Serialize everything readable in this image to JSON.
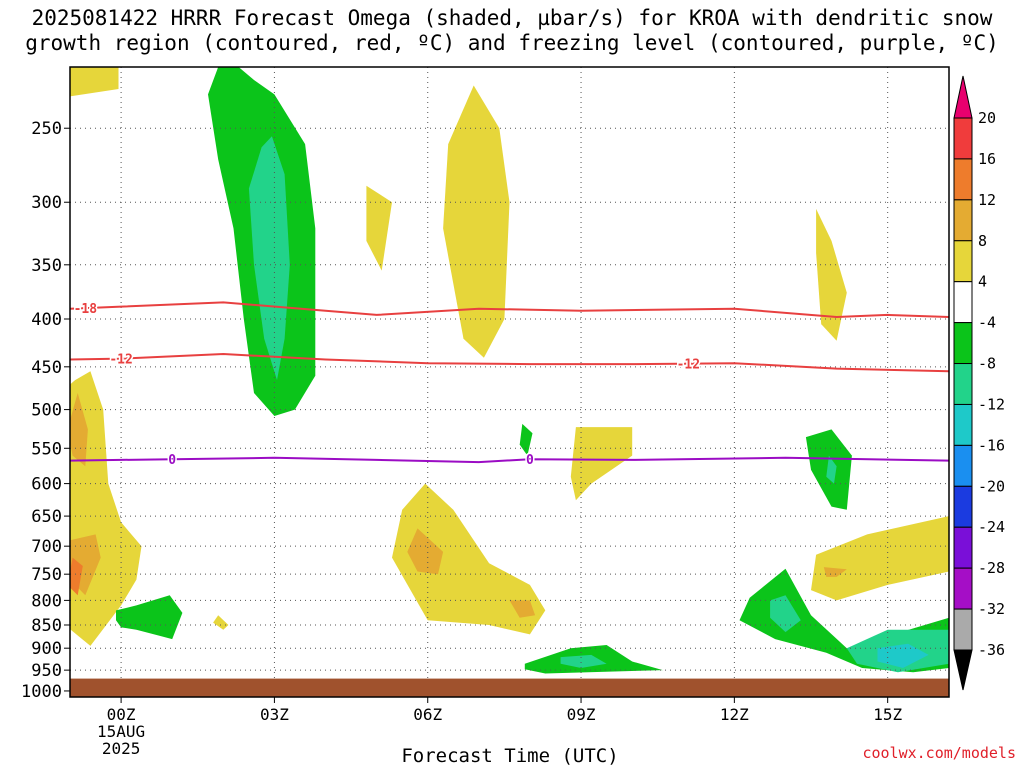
{
  "title_line1": "2025081422 HRRR Forecast Omega (shaded, µbar/s) for KROA with dendritic snow",
  "title_line2": "growth region (contoured, red, ºC) and freezing level (contoured, purple, ºC)",
  "credit": "coolwx.com/models",
  "chart_data": {
    "type": "contour",
    "xlabel": "Forecast Time (UTC)",
    "xlim": [
      -1,
      16.2
    ],
    "ylim": [
      215,
      1015
    ],
    "y_log": true,
    "grid": true,
    "x_ticks": [
      {
        "hour": 0,
        "label": "00Z",
        "sub": [
          "15AUG",
          "2025"
        ]
      },
      {
        "hour": 3,
        "label": "03Z"
      },
      {
        "hour": 6,
        "label": "06Z"
      },
      {
        "hour": 9,
        "label": "09Z"
      },
      {
        "hour": 12,
        "label": "12Z"
      },
      {
        "hour": 15,
        "label": "15Z"
      }
    ],
    "y_ticks": [
      250,
      300,
      350,
      400,
      450,
      500,
      550,
      600,
      650,
      700,
      750,
      800,
      850,
      900,
      950,
      1000
    ],
    "y_tick_labels": [
      "250",
      "300",
      "350",
      "400",
      "450",
      "500",
      "550",
      "600",
      "650",
      "700",
      "750",
      "800",
      "850",
      "900",
      "950",
      "1000"
    ],
    "ground_pressure": 970,
    "ground_color": "#a0522d",
    "colorbar": {
      "labels": [
        "20",
        "16",
        "12",
        "8",
        "4",
        "-4",
        "-8",
        "-12",
        "-16",
        "-20",
        "-24",
        "-28",
        "-32",
        "-36"
      ],
      "top_arrow_color": "#e8006e",
      "bottom_arrow_color": "#000000",
      "colors": [
        "#f03c3c",
        "#ee7c2c",
        "#e4ab32",
        "#e6d63a",
        "#ffffff",
        "#0bc41a",
        "#22d38a",
        "#1ec9c9",
        "#1a8ff0",
        "#1b3be0",
        "#7a0fd8",
        "#a50ec6",
        "#aaaaaa"
      ]
    },
    "isotherms": [
      {
        "label": "-18",
        "color": "#e84040",
        "label_hours": [
          -0.7
        ],
        "points": [
          [
            -1,
            390
          ],
          [
            0,
            388
          ],
          [
            2,
            384
          ],
          [
            4,
            392
          ],
          [
            5,
            396
          ],
          [
            7,
            390
          ],
          [
            9,
            392
          ],
          [
            12,
            390
          ],
          [
            14,
            398
          ],
          [
            15,
            396
          ],
          [
            16.2,
            398
          ]
        ]
      },
      {
        "label": "-12",
        "color": "#e84040",
        "label_hours": [
          0,
          11.1
        ],
        "points": [
          [
            -1,
            442
          ],
          [
            0,
            441
          ],
          [
            2,
            436
          ],
          [
            4,
            442
          ],
          [
            6,
            446
          ],
          [
            8,
            447
          ],
          [
            10,
            447
          ],
          [
            12,
            446
          ],
          [
            14,
            452
          ],
          [
            16.2,
            455
          ]
        ]
      },
      {
        "label": "0",
        "color": "#9b0cc4",
        "label_hours": [
          1,
          8
        ],
        "points": [
          [
            -1,
            567
          ],
          [
            0,
            566
          ],
          [
            3,
            563
          ],
          [
            5,
            566
          ],
          [
            7,
            569
          ],
          [
            8,
            565
          ],
          [
            10,
            566
          ],
          [
            13,
            563
          ],
          [
            16.2,
            567
          ]
        ]
      }
    ],
    "regions": [
      {
        "value": 4,
        "color": "#e6d63a",
        "points": [
          [
            -1.2,
            215
          ],
          [
            -0.05,
            215
          ],
          [
            -0.05,
            227
          ],
          [
            -1.2,
            232
          ]
        ]
      },
      {
        "value": -4,
        "color": "#0bc41a",
        "points": [
          [
            1.9,
            215
          ],
          [
            2.3,
            215
          ],
          [
            2.6,
            222
          ],
          [
            3,
            230
          ],
          [
            3.6,
            260
          ],
          [
            3.8,
            320
          ],
          [
            3.8,
            460
          ],
          [
            3.4,
            500
          ],
          [
            3,
            508
          ],
          [
            2.6,
            480
          ],
          [
            2.4,
            400
          ],
          [
            2.2,
            320
          ],
          [
            1.9,
            270
          ],
          [
            1.7,
            230
          ]
        ]
      },
      {
        "value": -8,
        "color": "#22d38a",
        "points": [
          [
            2.95,
            255
          ],
          [
            3.2,
            280
          ],
          [
            3.3,
            350
          ],
          [
            3.2,
            420
          ],
          [
            3.05,
            465
          ],
          [
            2.8,
            420
          ],
          [
            2.6,
            350
          ],
          [
            2.5,
            290
          ],
          [
            2.75,
            262
          ]
        ]
      },
      {
        "value": 4,
        "color": "#e6d63a",
        "points": [
          [
            6.9,
            225
          ],
          [
            7.4,
            250
          ],
          [
            7.6,
            300
          ],
          [
            7.5,
            400
          ],
          [
            7.1,
            440
          ],
          [
            6.7,
            420
          ],
          [
            6.3,
            320
          ],
          [
            6.4,
            260
          ]
        ]
      },
      {
        "value": 4,
        "color": "#e6d63a",
        "points": [
          [
            4.8,
            288
          ],
          [
            5.3,
            300
          ],
          [
            5.1,
            355
          ],
          [
            4.8,
            330
          ]
        ]
      },
      {
        "value": 4,
        "color": "#e6d63a",
        "points": [
          [
            13.6,
            305
          ],
          [
            13.9,
            330
          ],
          [
            14.2,
            375
          ],
          [
            14.0,
            422
          ],
          [
            13.7,
            405
          ],
          [
            13.6,
            340
          ]
        ]
      },
      {
        "value": 4,
        "color": "#e6d63a",
        "points": [
          [
            -0.9,
            465
          ],
          [
            -0.6,
            455
          ],
          [
            -0.35,
            500
          ],
          [
            -0.25,
            600
          ],
          [
            0,
            660
          ],
          [
            0.4,
            700
          ],
          [
            0.3,
            760
          ],
          [
            0,
            810
          ],
          [
            -0.6,
            895
          ],
          [
            -1.1,
            850
          ],
          [
            -1.2,
            760
          ],
          [
            -1.1,
            660
          ],
          [
            -1.2,
            600
          ],
          [
            -1.2,
            500
          ],
          [
            -1.0,
            470
          ]
        ]
      },
      {
        "value": 8,
        "color": "#e4ab32",
        "points": [
          [
            -0.85,
            480
          ],
          [
            -0.65,
            525
          ],
          [
            -0.7,
            575
          ],
          [
            -0.95,
            560
          ],
          [
            -1.05,
            525
          ]
        ]
      },
      {
        "value": 8,
        "color": "#e4ab32",
        "points": [
          [
            -1.0,
            690
          ],
          [
            -0.5,
            680
          ],
          [
            -0.4,
            720
          ],
          [
            -0.7,
            790
          ],
          [
            -1.0,
            760
          ]
        ]
      },
      {
        "value": 12,
        "color": "#ee7c2c",
        "points": [
          [
            -0.95,
            720
          ],
          [
            -0.75,
            735
          ],
          [
            -0.85,
            790
          ],
          [
            -1.05,
            770
          ]
        ]
      },
      {
        "value": 4,
        "color": "#e6d63a",
        "points": [
          [
            5.95,
            600
          ],
          [
            6.5,
            640
          ],
          [
            7.2,
            730
          ],
          [
            8,
            770
          ],
          [
            8.3,
            820
          ],
          [
            8,
            870
          ],
          [
            7.2,
            850
          ],
          [
            6,
            840
          ],
          [
            5.3,
            720
          ],
          [
            5.5,
            640
          ]
        ]
      },
      {
        "value": 8,
        "color": "#e4ab32",
        "points": [
          [
            5.8,
            670
          ],
          [
            6.3,
            710
          ],
          [
            6.2,
            750
          ],
          [
            5.8,
            745
          ],
          [
            5.6,
            710
          ]
        ]
      },
      {
        "value": 8,
        "color": "#e4ab32",
        "points": [
          [
            7.6,
            800
          ],
          [
            8,
            800
          ],
          [
            8.1,
            830
          ],
          [
            7.8,
            835
          ]
        ]
      },
      {
        "value": 4,
        "color": "#e6d63a",
        "points": [
          [
            8.9,
            522
          ],
          [
            10,
            522
          ],
          [
            10,
            560
          ],
          [
            9.2,
            600
          ],
          [
            8.9,
            625
          ],
          [
            8.8,
            590
          ]
        ]
      },
      {
        "value": 4,
        "color": "#e6d63a",
        "points": [
          [
            13.6,
            715
          ],
          [
            14.6,
            680
          ],
          [
            16.2,
            650
          ],
          [
            16.2,
            745
          ],
          [
            15,
            770
          ],
          [
            14,
            800
          ],
          [
            13.5,
            780
          ]
        ]
      },
      {
        "value": 8,
        "color": "#e4ab32",
        "points": [
          [
            13.75,
            737
          ],
          [
            14.2,
            741
          ],
          [
            14.0,
            755
          ],
          [
            13.8,
            755
          ]
        ]
      },
      {
        "value": 4,
        "color": "#e6d63a",
        "points": [
          [
            1.9,
            830
          ],
          [
            2.1,
            850
          ],
          [
            2.0,
            860
          ],
          [
            1.8,
            845
          ]
        ]
      },
      {
        "value": -4,
        "color": "#0bc41a",
        "points": [
          [
            -0.1,
            820
          ],
          [
            0.3,
            810
          ],
          [
            0.95,
            790
          ],
          [
            1.2,
            825
          ],
          [
            1.0,
            880
          ],
          [
            0.3,
            860
          ],
          [
            0.0,
            855
          ],
          [
            -0.1,
            840
          ]
        ]
      },
      {
        "value": -4,
        "color": "#0bc41a",
        "points": [
          [
            7.85,
            518
          ],
          [
            8.05,
            530
          ],
          [
            7.95,
            560
          ],
          [
            7.8,
            545
          ]
        ]
      },
      {
        "value": -4,
        "color": "#0bc41a",
        "points": [
          [
            13.4,
            535
          ],
          [
            13.9,
            525
          ],
          [
            14.3,
            560
          ],
          [
            14.2,
            640
          ],
          [
            13.9,
            635
          ],
          [
            13.5,
            580
          ]
        ]
      },
      {
        "value": -8,
        "color": "#22d38a",
        "points": [
          [
            13.85,
            560
          ],
          [
            14.0,
            575
          ],
          [
            13.95,
            600
          ],
          [
            13.8,
            590
          ]
        ]
      },
      {
        "value": -4,
        "color": "#0bc41a",
        "points": [
          [
            12.3,
            795
          ],
          [
            13.0,
            740
          ],
          [
            13.5,
            830
          ],
          [
            14.2,
            900
          ],
          [
            16.2,
            835
          ],
          [
            16.2,
            945
          ],
          [
            15.5,
            955
          ],
          [
            14.5,
            945
          ],
          [
            13.8,
            910
          ],
          [
            12.8,
            880
          ],
          [
            12.1,
            840
          ]
        ]
      },
      {
        "value": -8,
        "color": "#22d38a",
        "points": [
          [
            12.7,
            800
          ],
          [
            13,
            790
          ],
          [
            13.3,
            840
          ],
          [
            13,
            865
          ],
          [
            12.7,
            835
          ]
        ]
      },
      {
        "value": -8,
        "color": "#22d38a",
        "points": [
          [
            14.2,
            900
          ],
          [
            15,
            860
          ],
          [
            16.2,
            860
          ],
          [
            16.2,
            935
          ],
          [
            15.2,
            955
          ],
          [
            14.4,
            935
          ]
        ]
      },
      {
        "value": -12,
        "color": "#1ec9c9",
        "points": [
          [
            14.8,
            900
          ],
          [
            15.4,
            890
          ],
          [
            15.8,
            915
          ],
          [
            15.3,
            945
          ],
          [
            14.8,
            930
          ]
        ]
      },
      {
        "value": -4,
        "color": "#0bc41a",
        "points": [
          [
            7.9,
            935
          ],
          [
            8.8,
            900
          ],
          [
            9.5,
            893
          ],
          [
            10.0,
            930
          ],
          [
            10.6,
            950
          ],
          [
            8.3,
            958
          ],
          [
            7.9,
            948
          ]
        ]
      },
      {
        "value": -8,
        "color": "#22d38a",
        "points": [
          [
            8.6,
            920
          ],
          [
            9.2,
            915
          ],
          [
            9.5,
            935
          ],
          [
            9.0,
            945
          ],
          [
            8.6,
            935
          ]
        ]
      }
    ]
  }
}
